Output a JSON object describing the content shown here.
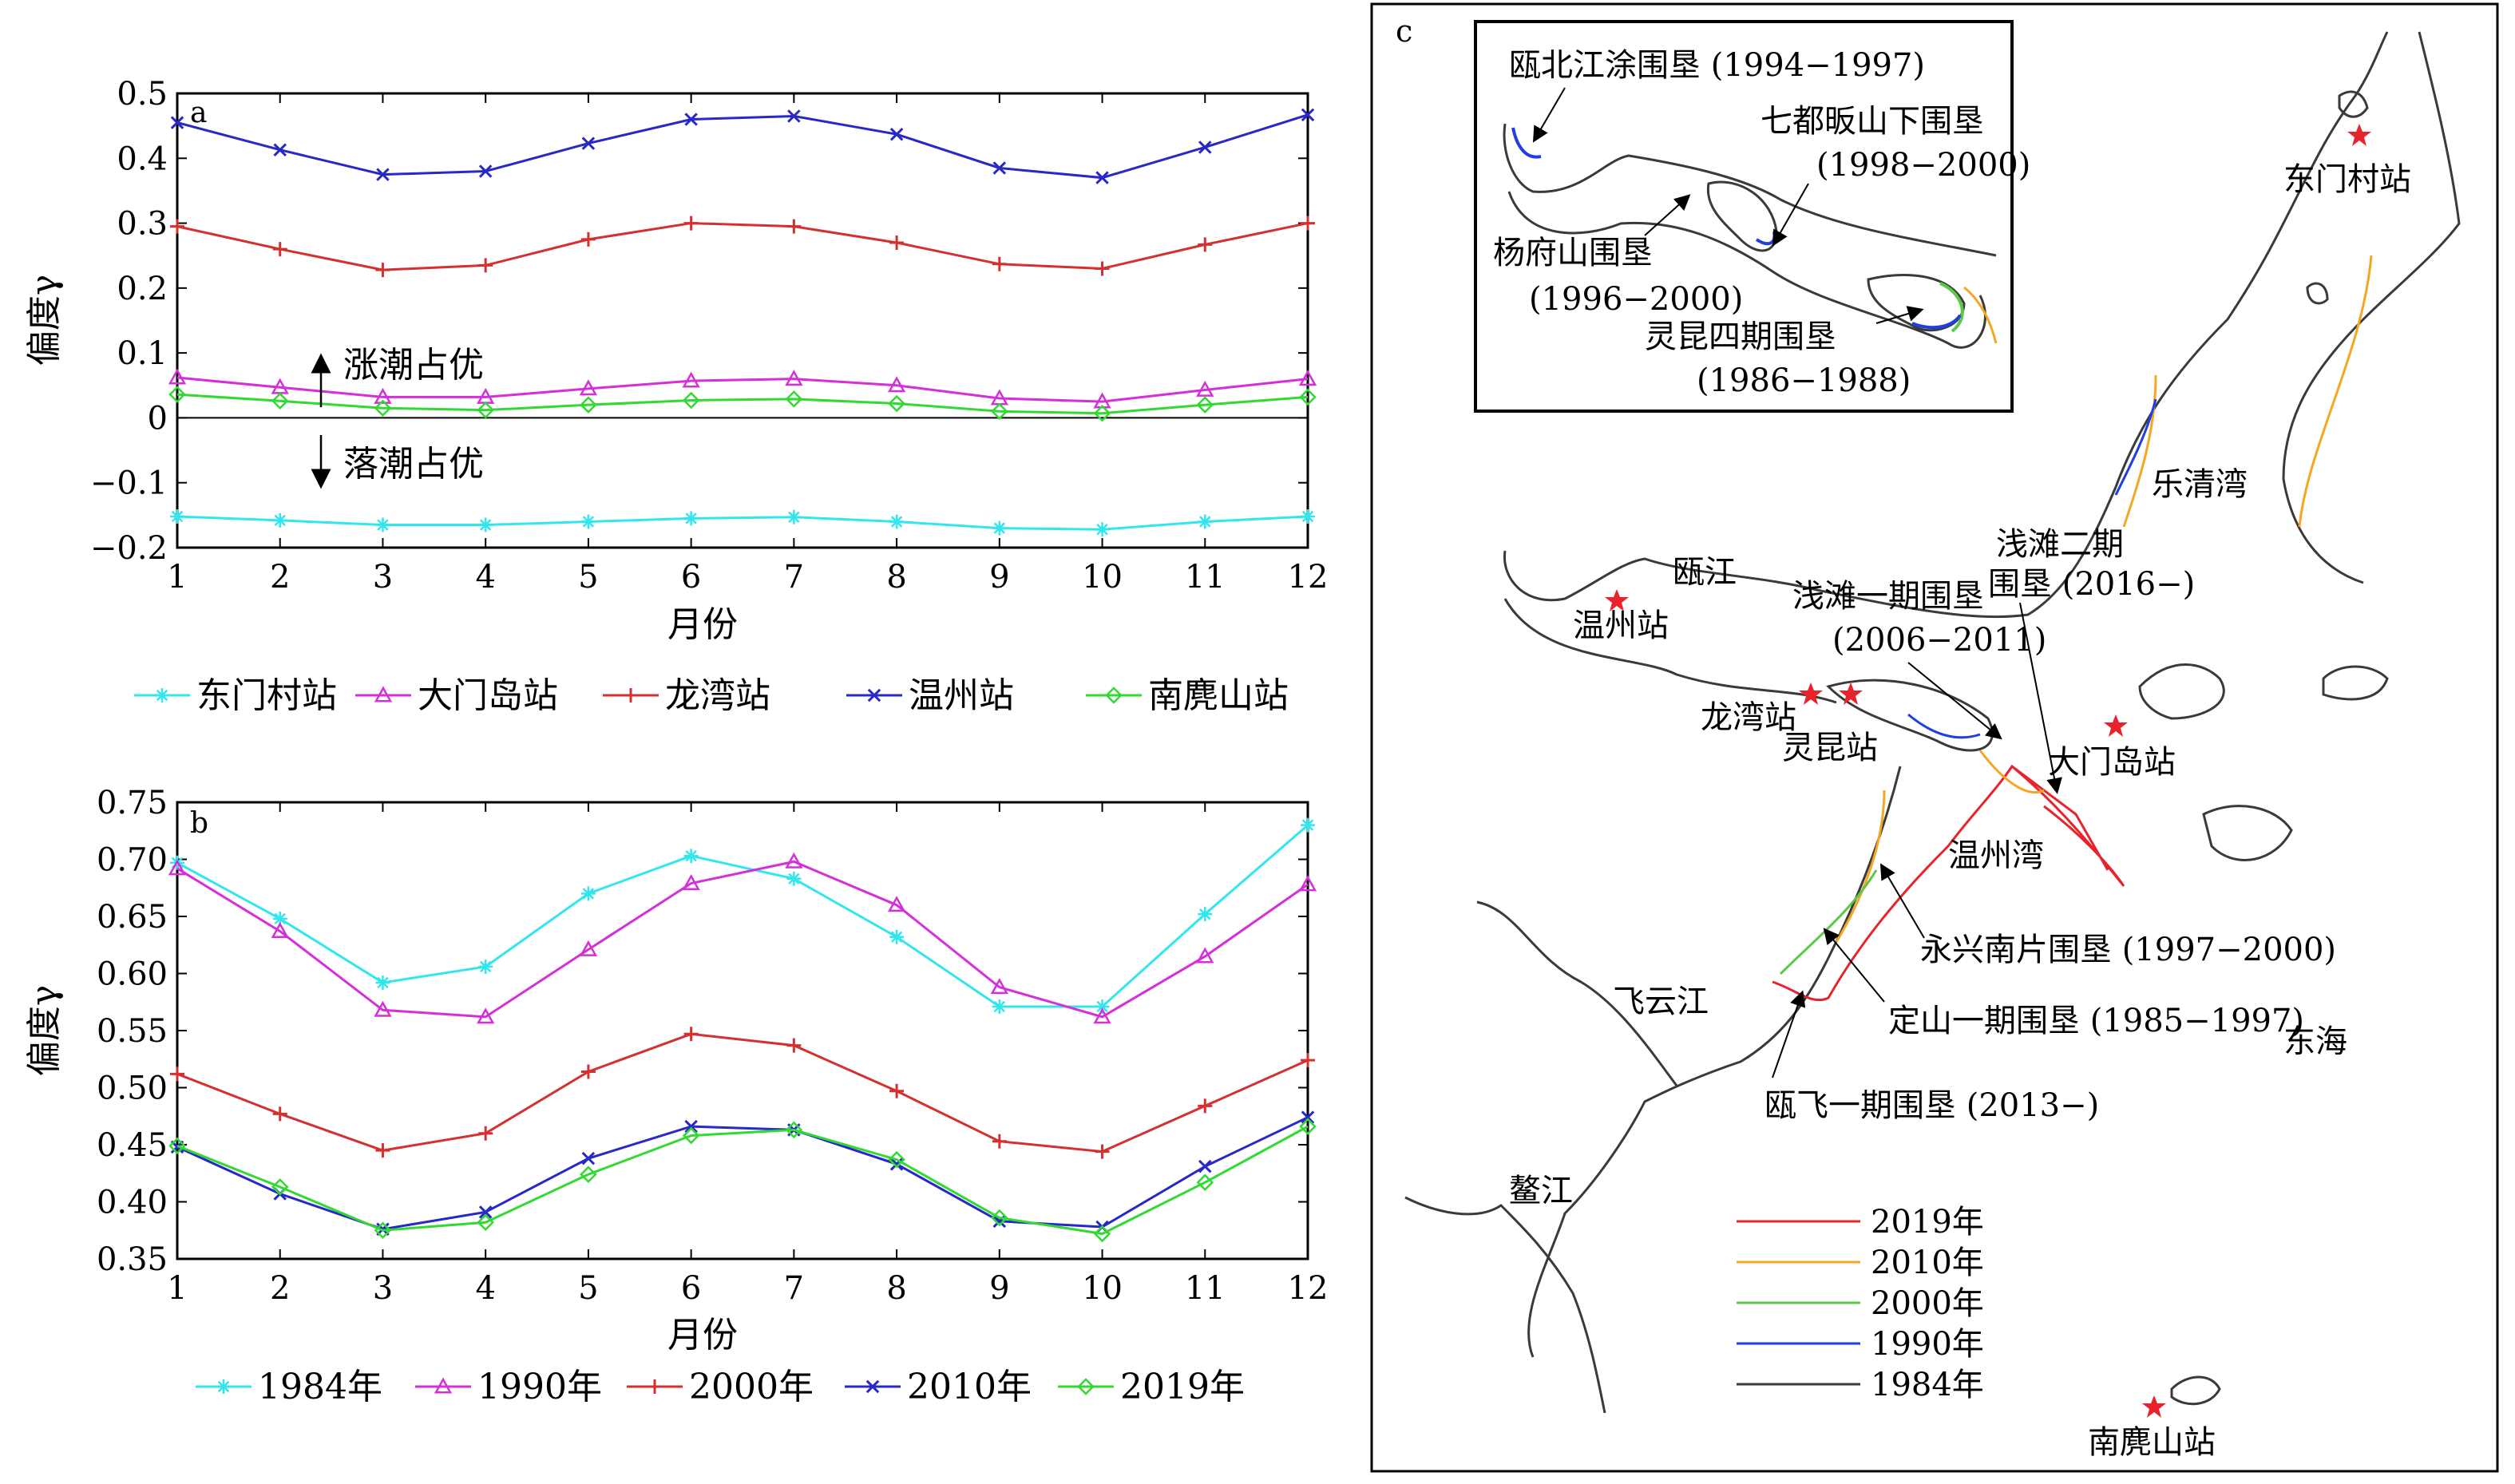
{
  "chart_data": [
    {
      "type": "line",
      "panel_label": "a",
      "xlabel": "月份",
      "ylabel": "偏度γ",
      "x": [
        1,
        2,
        3,
        4,
        5,
        6,
        7,
        8,
        9,
        10,
        11,
        12
      ],
      "xlim": [
        1,
        12
      ],
      "ylim": [
        -0.2,
        0.5
      ],
      "xticks": [
        "1",
        "2",
        "3",
        "4",
        "5",
        "6",
        "7",
        "8",
        "9",
        "10",
        "11",
        "12"
      ],
      "yticks": [
        -0.2,
        -0.1,
        0,
        0.1,
        0.2,
        0.3,
        0.4,
        0.5
      ],
      "ytick_labels": [
        "−0.2",
        "−0.1",
        "0",
        "0.1",
        "0.2",
        "0.3",
        "0.4",
        "0.5"
      ],
      "annotations": [
        "涨潮占优",
        "落潮占优"
      ],
      "legend_position": "bottom",
      "series": [
        {
          "name": "东门村站",
          "color": "#33e6ee",
          "marker": "asterisk",
          "values": [
            -0.152,
            -0.158,
            -0.165,
            -0.165,
            -0.16,
            -0.155,
            -0.153,
            -0.16,
            -0.17,
            -0.172,
            -0.16,
            -0.152
          ]
        },
        {
          "name": "大门岛站",
          "color": "#d52fd9",
          "marker": "triangle",
          "values": [
            0.062,
            0.047,
            0.032,
            0.032,
            0.045,
            0.057,
            0.06,
            0.05,
            0.03,
            0.025,
            0.043,
            0.06
          ]
        },
        {
          "name": "龙湾站",
          "color": "#d43030",
          "marker": "plus",
          "values": [
            0.295,
            0.26,
            0.228,
            0.235,
            0.275,
            0.3,
            0.295,
            0.27,
            0.237,
            0.23,
            0.267,
            0.3
          ]
        },
        {
          "name": "温州站",
          "color": "#2828c8",
          "marker": "x",
          "values": [
            0.455,
            0.413,
            0.375,
            0.38,
            0.423,
            0.46,
            0.465,
            0.437,
            0.385,
            0.37,
            0.417,
            0.467
          ]
        },
        {
          "name": "南麂山站",
          "color": "#33d933",
          "marker": "diamond",
          "values": [
            0.036,
            0.026,
            0.015,
            0.012,
            0.02,
            0.027,
            0.029,
            0.022,
            0.01,
            0.007,
            0.02,
            0.032
          ]
        }
      ]
    },
    {
      "type": "line",
      "panel_label": "b",
      "xlabel": "月份",
      "ylabel": "偏度γ",
      "x": [
        1,
        2,
        3,
        4,
        5,
        6,
        7,
        8,
        9,
        10,
        11,
        12
      ],
      "xlim": [
        1,
        12
      ],
      "ylim": [
        0.35,
        0.75
      ],
      "xticks": [
        "1",
        "2",
        "3",
        "4",
        "5",
        "6",
        "7",
        "8",
        "9",
        "10",
        "11",
        "12"
      ],
      "yticks": [
        0.35,
        0.4,
        0.45,
        0.5,
        0.55,
        0.6,
        0.65,
        0.7,
        0.75
      ],
      "ytick_labels": [
        "0.35",
        "0.40",
        "0.45",
        "0.50",
        "0.55",
        "0.60",
        "0.65",
        "0.70",
        "0.75"
      ],
      "legend_position": "bottom",
      "series": [
        {
          "name": "1984年",
          "color": "#33e6ee",
          "marker": "asterisk",
          "values": [
            0.697,
            0.648,
            0.592,
            0.606,
            0.67,
            0.703,
            0.683,
            0.632,
            0.571,
            0.571,
            0.652,
            0.73
          ]
        },
        {
          "name": "1990年",
          "color": "#d52fd9",
          "marker": "triangle",
          "values": [
            0.692,
            0.637,
            0.568,
            0.562,
            0.621,
            0.679,
            0.698,
            0.66,
            0.588,
            0.562,
            0.615,
            0.678
          ]
        },
        {
          "name": "2000年",
          "color": "#d43030",
          "marker": "plus",
          "values": [
            0.512,
            0.477,
            0.445,
            0.46,
            0.514,
            0.547,
            0.537,
            0.497,
            0.453,
            0.444,
            0.484,
            0.524
          ]
        },
        {
          "name": "2010年",
          "color": "#2828c8",
          "marker": "x",
          "values": [
            0.448,
            0.407,
            0.376,
            0.391,
            0.438,
            0.466,
            0.463,
            0.433,
            0.383,
            0.378,
            0.431,
            0.474
          ]
        },
        {
          "name": "2019年",
          "color": "#33d933",
          "marker": "diamond",
          "values": [
            0.449,
            0.413,
            0.375,
            0.382,
            0.424,
            0.458,
            0.463,
            0.437,
            0.386,
            0.372,
            0.417,
            0.466
          ]
        }
      ]
    }
  ],
  "map": {
    "panel_label": "c",
    "inset_labels": {
      "oubeijiang": "瓯北江涂围垦 (1994−1997)",
      "qidu_1": "七都昄山下围垦",
      "qidu_2": "(1998−2000)",
      "yangfushan_1": "杨府山围垦",
      "yangfushan_2": "(1996−2000)",
      "lingkun_1": "灵昆四期围垦",
      "lingkun_2": "(1986−1988)"
    },
    "labels": {
      "dongmencun": "东门村站",
      "yueqingwan": "乐清湾",
      "oujiang": "瓯江",
      "wenzhou": "温州站",
      "qiantan3_1": "浅滩二期",
      "qiantan3_2": "围垦 (2016−)",
      "qiantan1_1": "浅滩一期围垦",
      "qiantan1_2": "(2006−2011)",
      "longwan": "龙湾站",
      "lingkun": "灵昆站",
      "damendao": "大门岛站",
      "wenzhouwan": "温州湾",
      "yongxing": "永兴南片围垦 (1997−2000)",
      "dingshan": "定山一期围垦 (1985−1997)",
      "donghai": "东海",
      "feiyunjiang": "飞云江",
      "oufei": "瓯飞一期围垦 (2013−)",
      "aojiang": "鳌江",
      "nanjishan": "南麂山站"
    },
    "legend": [
      {
        "label": "2019年",
        "color": "#e8232b"
      },
      {
        "label": "2010年",
        "color": "#f5a623"
      },
      {
        "label": "2000年",
        "color": "#5cc84a"
      },
      {
        "label": "1990年",
        "color": "#1f3fe0"
      },
      {
        "label": "1984年",
        "color": "#3a3a3a"
      }
    ]
  }
}
